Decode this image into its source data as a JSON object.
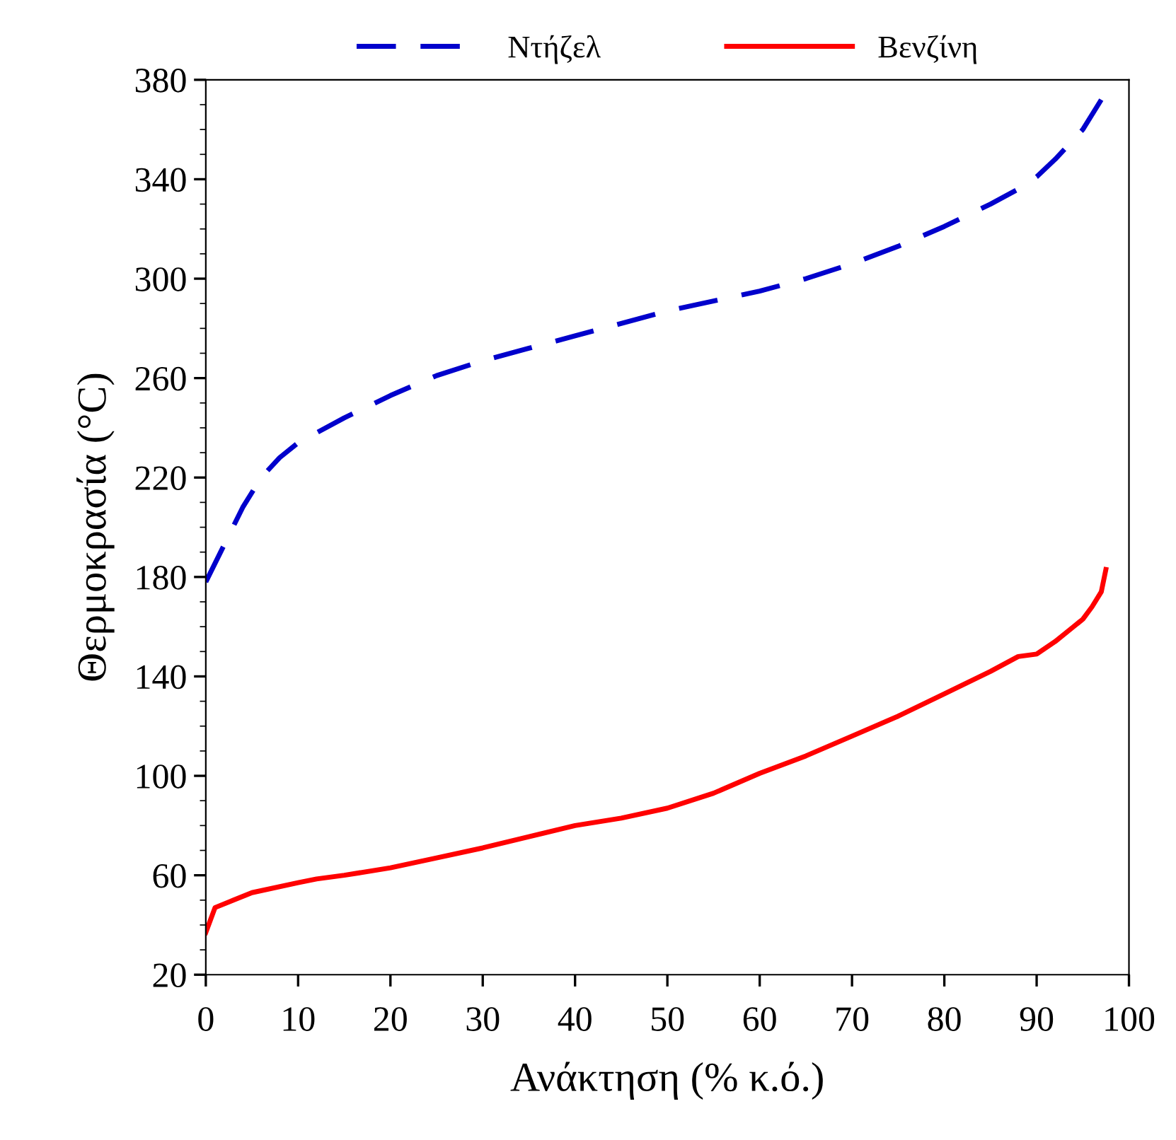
{
  "chart_data": {
    "type": "line",
    "xlabel": "Ανάκτηση (% κ.ό.)",
    "ylabel": "Θερμοκρασία (°C)",
    "xlim": [
      0,
      100
    ],
    "ylim": [
      20,
      380
    ],
    "xticks": [
      0,
      10,
      20,
      30,
      40,
      50,
      60,
      70,
      80,
      90,
      100
    ],
    "yticks": [
      20,
      60,
      100,
      140,
      180,
      220,
      260,
      300,
      340,
      380
    ],
    "grid": false,
    "legend": "top",
    "marker": "none",
    "series": [
      {
        "name": "Ντήζελ",
        "color": "#0000cc",
        "line_style": "dashed",
        "x": [
          0,
          2,
          4,
          6,
          8,
          10,
          15,
          20,
          25,
          30,
          35,
          40,
          45,
          50,
          55,
          60,
          65,
          70,
          75,
          80,
          85,
          88,
          90,
          92,
          95,
          97
        ],
        "values": [
          178,
          193,
          208,
          220,
          228,
          234,
          244,
          253,
          261,
          267,
          272,
          277,
          282,
          287,
          291,
          295,
          300,
          306,
          313,
          321,
          330,
          336,
          341,
          348,
          360,
          372
        ]
      },
      {
        "name": "Βενζίνη",
        "color": "#ff0000",
        "line_style": "solid",
        "x": [
          0,
          0.5,
          1,
          3,
          5,
          10,
          12,
          15,
          20,
          25,
          30,
          35,
          40,
          45,
          50,
          55,
          60,
          65,
          70,
          75,
          80,
          85,
          88,
          90,
          92,
          94,
          95,
          96,
          97,
          97.5
        ],
        "values": [
          37,
          42,
          47,
          50,
          53,
          57,
          58.5,
          60,
          63,
          67,
          71,
          75.5,
          80,
          83,
          87,
          93,
          101,
          108,
          116,
          124,
          133,
          142,
          148,
          149,
          154,
          160,
          163,
          168,
          174,
          183
        ]
      }
    ]
  }
}
